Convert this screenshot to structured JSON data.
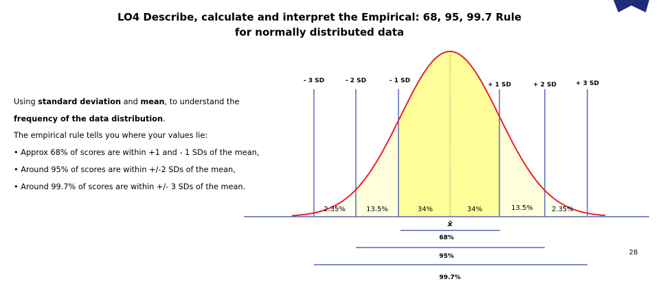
{
  "title": [
    "LO4 Describe, calculate and interpret the Empirical: 68, 95, 99.7 Rule",
    "for normally distributed data"
  ],
  "intro": {
    "line1": [
      "Using ",
      "standard deviation",
      " and ",
      "mean",
      ", to understand the"
    ],
    "line2": [
      "frequency of the data distribution",
      "."
    ]
  },
  "body": [
    "The empirical rule tells you where your values lie:",
    "• Approx 68% of scores are within +1 and - 1 SDs of the mean,",
    "• Around 95% of scores are within +/-2 SDs of the mean,",
    "• Around 99.7% of scores are within +/- 3 SDs of the mean."
  ],
  "diagram": {
    "sd_labels": [
      "- 3 SD",
      "- 2 SD",
      "- 1 SD",
      "+ 1 SD",
      "+ 2 SD",
      "+ 3 SD"
    ],
    "area_labels": [
      "2.35%",
      "13.5%",
      "34%",
      "34%",
      "13.5%",
      "2.35%"
    ],
    "mean_symbol": "x̄",
    "ranges": [
      "68%",
      "95%",
      "99.7%"
    ]
  },
  "page_number": "28"
}
